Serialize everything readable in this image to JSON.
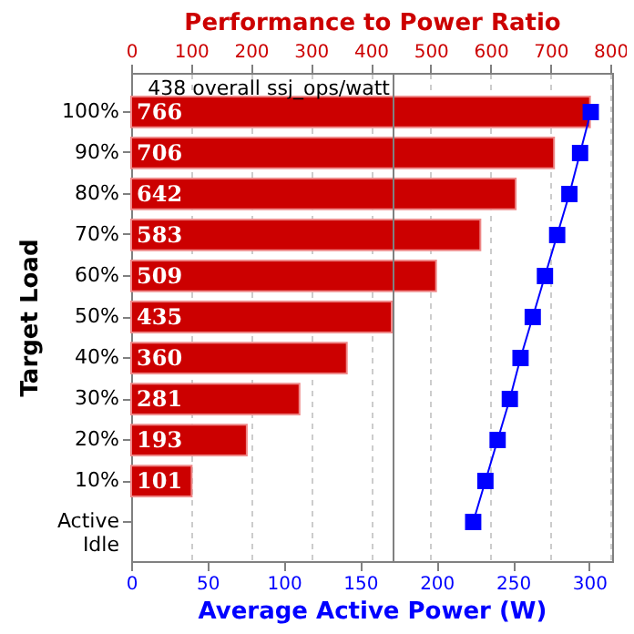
{
  "chart_data": {
    "type": "bar",
    "orientation": "horizontal",
    "x2label": "Performance to Power Ratio",
    "xlabel": "Average Active Power (W)",
    "ylabel": "Target Load",
    "categories": [
      "100%",
      "90%",
      "80%",
      "70%",
      "60%",
      "50%",
      "40%",
      "30%",
      "20%",
      "10%",
      "Active Idle"
    ],
    "series": [
      {
        "axis": "x2",
        "color": "#cc0000",
        "values": [
          766,
          706,
          642,
          583,
          509,
          435,
          360,
          281,
          193,
          101,
          null
        ],
        "value_labels": [
          "766",
          "706",
          "642",
          "583",
          "509",
          "435",
          "360",
          "281",
          "193",
          "101",
          null
        ]
      },
      {
        "type": "line",
        "color": "#0000ff",
        "values": [
          301,
          294,
          287,
          279,
          271,
          263,
          255,
          248,
          240,
          232,
          224
        ]
      }
    ],
    "marker": "square",
    "line_style": "solid",
    "xlim": [
      0,
      315
    ],
    "xticks": [
      0,
      50,
      100,
      150,
      200,
      250,
      300
    ],
    "x2lim": [
      0,
      803
    ],
    "x2ticks": [
      0,
      100,
      200,
      300,
      400,
      500,
      600,
      700,
      800
    ],
    "ref_lines": [
      {
        "axis": "x2",
        "value": 438,
        "label": "438 overall ssj_ops/watt",
        "color": "#808080"
      }
    ],
    "grid": true
  }
}
